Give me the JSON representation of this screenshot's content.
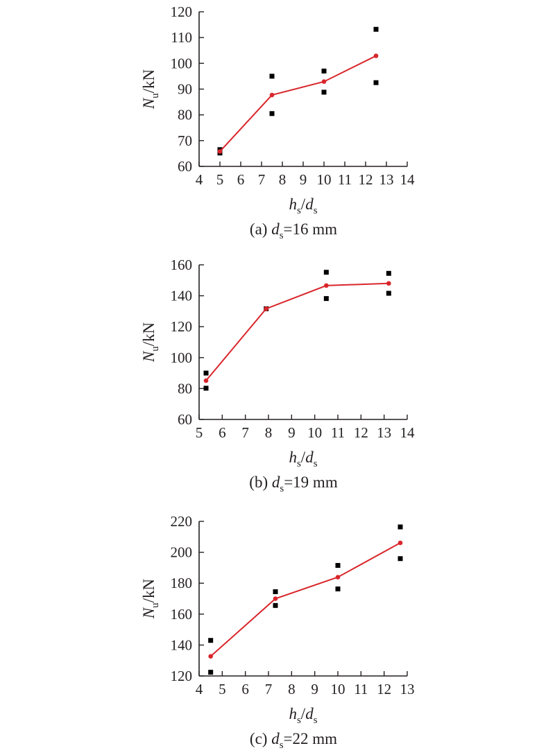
{
  "chart_data": [
    {
      "type": "line",
      "caption": {
        "prefix": "(a) ",
        "var": "d",
        "sub": "s",
        "rest": "=16 mm"
      },
      "xlabel": {
        "a": "h",
        "a_sub": "s",
        "sep": "/",
        "b": "d",
        "b_sub": "s"
      },
      "ylabel": {
        "var": "N",
        "sub": "u",
        "rest": "/kN"
      },
      "xlim": [
        4,
        14
      ],
      "ylim": [
        60,
        120
      ],
      "xticks": [
        4,
        5,
        6,
        7,
        8,
        9,
        10,
        11,
        12,
        13,
        14
      ],
      "yticks": [
        60,
        70,
        80,
        90,
        100,
        110,
        120
      ],
      "grid": false,
      "series": [
        {
          "marker": "square",
          "color": "#000000",
          "connected": false,
          "points": [
            [
              5,
              66.5
            ],
            [
              5,
              65.2
            ],
            [
              7.5,
              95
            ],
            [
              7.5,
              80.5
            ],
            [
              10,
              97
            ],
            [
              10,
              88.8
            ],
            [
              12.5,
              113.2
            ],
            [
              12.5,
              92.5
            ]
          ]
        },
        {
          "marker": "circle",
          "color": "#d9262b",
          "connected": true,
          "points": [
            [
              5,
              65.8
            ],
            [
              7.5,
              87.7
            ],
            [
              10,
              92.9
            ],
            [
              12.5,
              102.9
            ]
          ]
        }
      ]
    },
    {
      "type": "line",
      "caption": {
        "prefix": "(b) ",
        "var": "d",
        "sub": "s",
        "rest": "=19 mm"
      },
      "xlabel": {
        "a": "h",
        "a_sub": "s",
        "sep": "/",
        "b": "d",
        "b_sub": "s"
      },
      "ylabel": {
        "var": "N",
        "sub": "u",
        "rest": "/kN"
      },
      "xlim": [
        5,
        14
      ],
      "ylim": [
        60,
        160
      ],
      "xticks": [
        5,
        6,
        7,
        8,
        9,
        10,
        11,
        12,
        13,
        14
      ],
      "yticks": [
        60,
        80,
        100,
        120,
        140,
        160
      ],
      "grid": false,
      "series": [
        {
          "marker": "square",
          "color": "#000000",
          "connected": false,
          "points": [
            [
              5.3,
              90
            ],
            [
              5.3,
              80.2
            ],
            [
              7.9,
              131.6
            ],
            [
              10.5,
              155.2
            ],
            [
              10.5,
              138.2
            ],
            [
              13.2,
              154.5
            ],
            [
              13.2,
              141.6
            ]
          ]
        },
        {
          "marker": "circle",
          "color": "#d9262b",
          "connected": true,
          "points": [
            [
              5.3,
              85.1
            ],
            [
              7.9,
              131.6
            ],
            [
              10.5,
              146.6
            ],
            [
              13.2,
              148
            ]
          ]
        }
      ]
    },
    {
      "type": "line",
      "caption": {
        "prefix": "(c) ",
        "var": "d",
        "sub": "s",
        "rest": "=22 mm"
      },
      "xlabel": {
        "a": "h",
        "a_sub": "s",
        "sep": "/",
        "b": "d",
        "b_sub": "s"
      },
      "ylabel": {
        "var": "N",
        "sub": "u",
        "rest": "/kN"
      },
      "xlim": [
        4,
        13
      ],
      "ylim": [
        120,
        220
      ],
      "xticks": [
        4,
        5,
        6,
        7,
        8,
        9,
        10,
        11,
        12,
        13
      ],
      "yticks": [
        120,
        140,
        160,
        180,
        200,
        220
      ],
      "grid": false,
      "series": [
        {
          "marker": "square",
          "color": "#000000",
          "connected": false,
          "points": [
            [
              4.5,
              143
            ],
            [
              4.5,
              122.4
            ],
            [
              7.3,
              174.5
            ],
            [
              7.3,
              165.6
            ],
            [
              10,
              191.5
            ],
            [
              10,
              176.3
            ],
            [
              12.7,
              216.4
            ],
            [
              12.7,
              195.9
            ]
          ]
        },
        {
          "marker": "circle",
          "color": "#d9262b",
          "connected": true,
          "points": [
            [
              4.5,
              132.7
            ],
            [
              7.3,
              170
            ],
            [
              10,
              183.9
            ],
            [
              12.7,
              206.1
            ]
          ]
        }
      ]
    }
  ]
}
